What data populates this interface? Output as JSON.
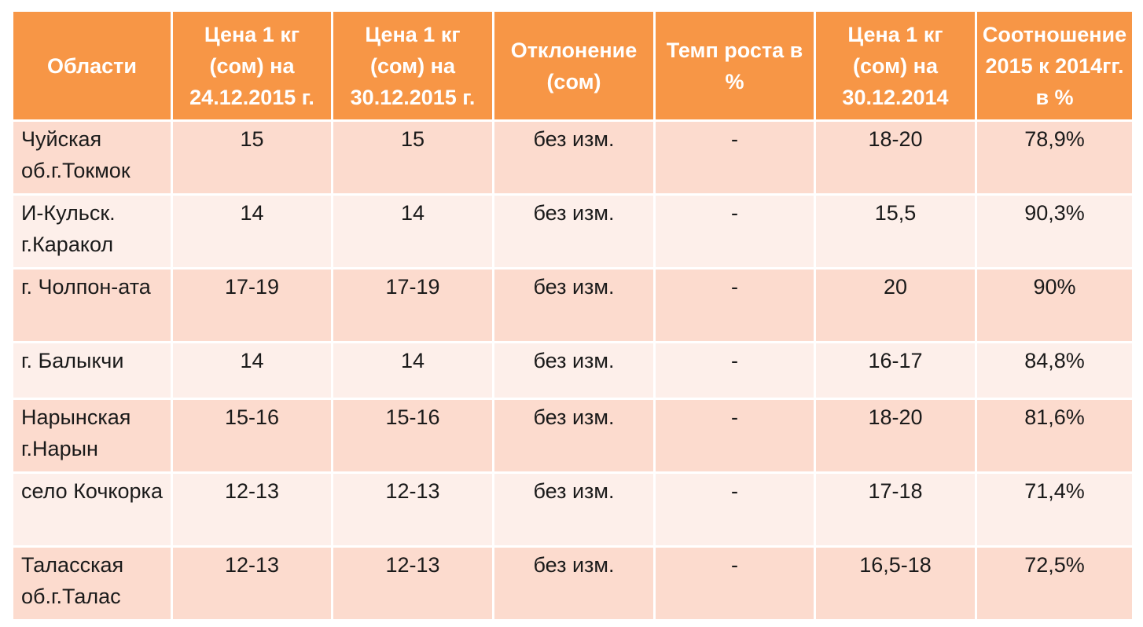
{
  "table": {
    "headers": [
      "Области",
      "Цена 1 кг (сом) на 24.12.2015 г.",
      "Цена 1 кг (сом) на 30.12.2015 г.",
      "Отклонение (сом)",
      "Темп роста в %",
      "Цена 1 кг (сом) на 30.12.2014",
      "Соотношение 2015 к 2014гг. в %"
    ],
    "rows": [
      [
        "Чуйская об.г.Токмок",
        "15",
        "15",
        "без изм.",
        "-",
        "18-20",
        "78,9%"
      ],
      [
        "И-Кульск. г.Каракол",
        "14",
        "14",
        "без изм.",
        "-",
        "15,5",
        "90,3%"
      ],
      [
        "г. Чолпон-ата",
        "17-19",
        "17-19",
        "без изм.",
        "-",
        "20",
        "90%"
      ],
      [
        "г. Балыкчи",
        "14",
        "14",
        "без изм.",
        "-",
        "16-17",
        "84,8%"
      ],
      [
        "Нарынская г.Нарын",
        "15-16",
        "15-16",
        "без изм.",
        "-",
        "18-20",
        "81,6%"
      ],
      [
        "село Кочкорка",
        "12-13",
        "12-13",
        "без изм.",
        "-",
        "17-18",
        "71,4%"
      ],
      [
        "Таласская об.г.Талас",
        "12-13",
        "12-13",
        "без изм.",
        "-",
        "16,5-18",
        "72,5%"
      ]
    ]
  },
  "colors": {
    "header_bg": "#f79646",
    "row_odd_bg": "#fcdbce",
    "row_even_bg": "#fdefea"
  }
}
